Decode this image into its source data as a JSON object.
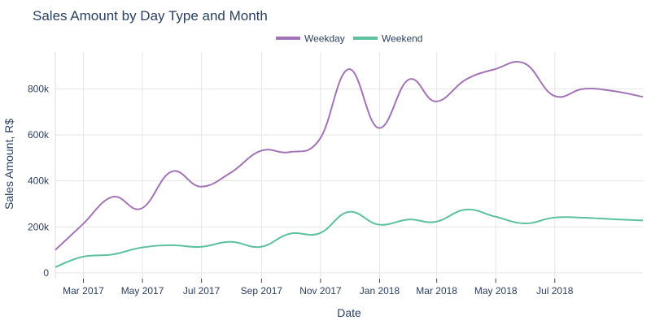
{
  "chart_data": {
    "type": "line",
    "title": "Sales Amount by Day Type and Month",
    "xlabel": "Date",
    "ylabel": "Sales Amount, R$",
    "ylim": [
      -25000,
      960000
    ],
    "grid": true,
    "legend_position": "top-center",
    "x": [
      "2017-01-31",
      "2017-02-28",
      "2017-03-31",
      "2017-04-30",
      "2017-05-31",
      "2017-06-30",
      "2017-07-31",
      "2017-08-31",
      "2017-09-30",
      "2017-10-31",
      "2017-11-30",
      "2017-12-31",
      "2018-01-31",
      "2018-02-28",
      "2018-03-31",
      "2018-04-30",
      "2018-05-31",
      "2018-06-30",
      "2018-07-31",
      "2018-08-31",
      "2018-09-30"
    ],
    "x_start": "2017-01-31",
    "x_end": "2018-09-30",
    "x_ticks": [
      {
        "date": "2017-03-01",
        "label": "Mar 2017"
      },
      {
        "date": "2017-05-01",
        "label": "May 2017"
      },
      {
        "date": "2017-07-01",
        "label": "Jul 2017"
      },
      {
        "date": "2017-09-01",
        "label": "Sep 2017"
      },
      {
        "date": "2017-11-01",
        "label": "Nov 2017"
      },
      {
        "date": "2018-01-01",
        "label": "Jan 2018"
      },
      {
        "date": "2018-03-01",
        "label": "Mar 2018"
      },
      {
        "date": "2018-05-01",
        "label": "May 2018"
      },
      {
        "date": "2018-07-01",
        "label": "Jul 2018"
      }
    ],
    "y_ticks": [
      {
        "value": 0,
        "label": "0"
      },
      {
        "value": 200000,
        "label": "200k"
      },
      {
        "value": 400000,
        "label": "400k"
      },
      {
        "value": 600000,
        "label": "600k"
      },
      {
        "value": 800000,
        "label": "800k"
      }
    ],
    "series": [
      {
        "name": "Weekday",
        "color": "#a374b5",
        "values": [
          100000,
          210000,
          330000,
          280000,
          440000,
          375000,
          435000,
          530000,
          525000,
          580000,
          885000,
          630000,
          840000,
          745000,
          840000,
          885000,
          910000,
          770000,
          800000,
          790000,
          765000
        ]
      },
      {
        "name": "Weekend",
        "color": "#5cc19e",
        "values": [
          25000,
          70000,
          80000,
          110000,
          120000,
          113000,
          135000,
          113000,
          170000,
          172000,
          265000,
          210000,
          232000,
          222000,
          275000,
          245000,
          215000,
          240000,
          240000,
          233000,
          228000
        ]
      }
    ]
  }
}
